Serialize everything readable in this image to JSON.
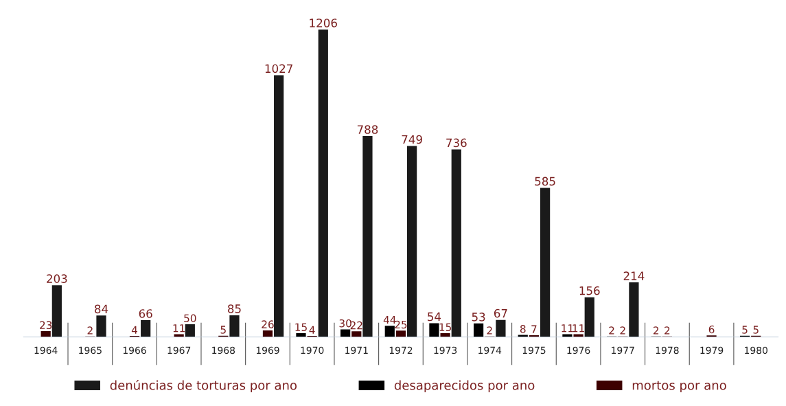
{
  "chart_data": {
    "type": "bar",
    "categories": [
      "1964",
      "1965",
      "1966",
      "1967",
      "1968",
      "1969",
      "1970",
      "1971",
      "1972",
      "1973",
      "1974",
      "1975",
      "1976",
      "1977",
      "1978",
      "1979",
      "1980"
    ],
    "series": [
      {
        "name": "denúncias de torturas por ano",
        "color": "#1a1a1a",
        "values": [
          203,
          84,
          66,
          50,
          85,
          1027,
          1206,
          788,
          749,
          736,
          67,
          585,
          156,
          214,
          null,
          null,
          null
        ]
      },
      {
        "name": "desaparecidos por ano",
        "color": "#000000",
        "values": [
          null,
          null,
          null,
          null,
          null,
          null,
          15,
          30,
          44,
          54,
          53,
          8,
          11,
          2,
          2,
          null,
          5
        ]
      },
      {
        "name": "mortos por ano",
        "color": "#3d0000",
        "values": [
          23,
          2,
          4,
          11,
          5,
          26,
          4,
          22,
          25,
          15,
          2,
          7,
          11,
          2,
          2,
          6,
          5
        ]
      }
    ],
    "data_labels": true,
    "legend": "bottom",
    "grid": false
  }
}
